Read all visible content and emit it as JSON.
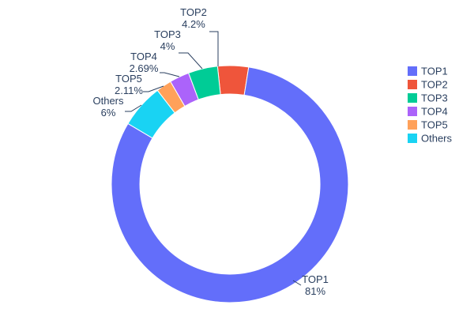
{
  "chart_data": {
    "type": "pie",
    "subtype": "donut",
    "title": "",
    "hole": 0.76,
    "labels": [
      "TOP1",
      "TOP2",
      "TOP3",
      "TOP4",
      "TOP5",
      "Others"
    ],
    "values": [
      81,
      4.2,
      4,
      2.69,
      2.11,
      6
    ],
    "percent_labels": [
      "81%",
      "4.2%",
      "4%",
      "2.69%",
      "2.11%",
      "6%"
    ],
    "colors": [
      "#636EFA",
      "#EF553B",
      "#00CC96",
      "#AB63FA",
      "#FFA15A",
      "#19D3F3"
    ],
    "clockwise_order": [
      "TOP2",
      "TOP1",
      "Others",
      "TOP5",
      "TOP4",
      "TOP3"
    ],
    "rotation_deg": -6,
    "legend": {
      "position": "right",
      "items": [
        "TOP1",
        "TOP2",
        "TOP3",
        "TOP4",
        "TOP5",
        "Others"
      ]
    },
    "text_color": "#2a3f5f",
    "background": "#ffffff"
  }
}
